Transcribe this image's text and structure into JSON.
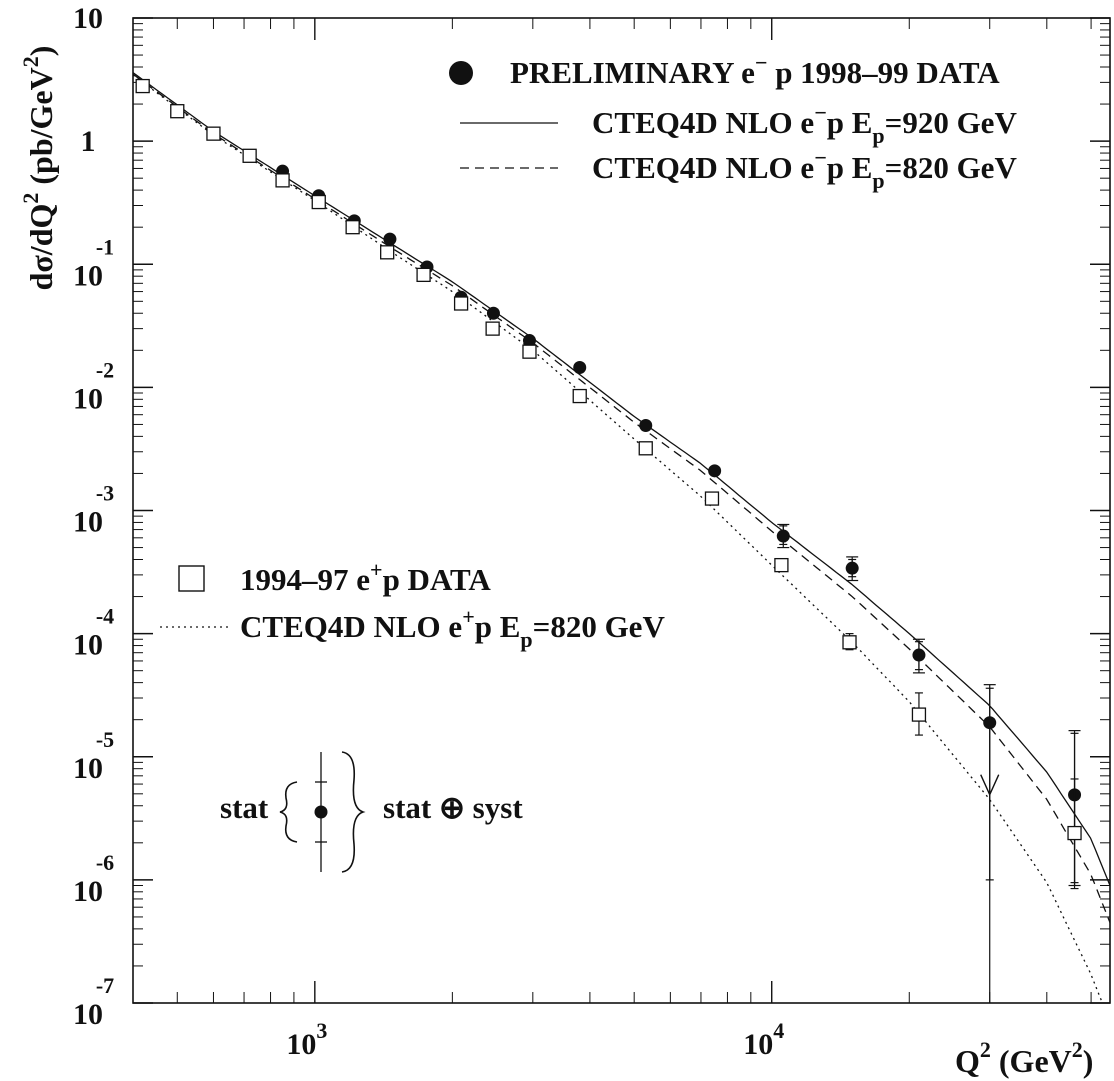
{
  "chart_data": {
    "type": "scatter",
    "title": "",
    "x_scale": "log",
    "y_scale": "log",
    "xlim": [
      400,
      55000
    ],
    "ylim": [
      1e-07,
      10
    ],
    "x_ticks": [
      {
        "value": 1000,
        "base": "10",
        "exp": "3"
      },
      {
        "value": 10000,
        "base": "10",
        "exp": "4"
      }
    ],
    "y_ticks": [
      {
        "value": 10,
        "base": "10",
        "exp": ""
      },
      {
        "value": 1,
        "base": "1",
        "exp": ""
      },
      {
        "value": 0.1,
        "base": "10",
        "exp": "-1"
      },
      {
        "value": 0.01,
        "base": "10",
        "exp": "-2"
      },
      {
        "value": 0.001,
        "base": "10",
        "exp": "-3"
      },
      {
        "value": 0.0001,
        "base": "10",
        "exp": "-4"
      },
      {
        "value": 1e-05,
        "base": "10",
        "exp": "-5"
      },
      {
        "value": 1e-06,
        "base": "10",
        "exp": "-6"
      },
      {
        "value": 1e-07,
        "base": "10",
        "exp": "-7"
      }
    ],
    "ylabel": {
      "main": "dσ/dQ",
      "sup": "2",
      "units": "(pb/GeV",
      "units_sup": "2",
      "close": ")"
    },
    "xlabel": {
      "main": "Q",
      "sup": "2",
      "units": " (GeV",
      "units_sup": "2",
      "close": ")"
    },
    "series": [
      {
        "name": "PRELIMINARY e⁻ p 1998–99 DATA",
        "kind": "points",
        "marker": "filled-circle",
        "color": "#111111",
        "points": [
          {
            "x": 850,
            "y": 0.57
          },
          {
            "x": 1020,
            "y": 0.36
          },
          {
            "x": 1220,
            "y": 0.225
          },
          {
            "x": 1460,
            "y": 0.16
          },
          {
            "x": 1760,
            "y": 0.095
          },
          {
            "x": 2090,
            "y": 0.054
          },
          {
            "x": 2460,
            "y": 0.04
          },
          {
            "x": 2950,
            "y": 0.024
          },
          {
            "x": 3800,
            "y": 0.0145
          },
          {
            "x": 5300,
            "y": 0.0049
          },
          {
            "x": 7500,
            "y": 0.0021
          },
          {
            "x": 10600,
            "y": 0.00062,
            "err": [
              0.00053,
              0.00075
            ],
            "errTot": [
              0.0005,
              0.00077
            ]
          },
          {
            "x": 15000,
            "y": 0.00034,
            "err": [
              0.00029,
              0.0004
            ],
            "errTot": [
              0.00027,
              0.00042
            ]
          },
          {
            "x": 21000,
            "y": 6.7e-05,
            "err": [
              5.1e-05,
              8.6e-05
            ],
            "errTot": [
              4.8e-05,
              9e-05
            ]
          },
          {
            "x": 30000,
            "y": 1.89e-05,
            "err": [
              1e-06,
              3.6e-05
            ],
            "errTot": [
              1e-07,
              3.85e-05
            ],
            "arrow": true
          },
          {
            "x": 46000,
            "y": 4.9e-06,
            "err": [
              9.5e-07,
              1.55e-05
            ],
            "errTot": [
              9e-07,
              1.63e-05
            ]
          }
        ]
      },
      {
        "name": "1994–97 e⁺p DATA",
        "kind": "points",
        "marker": "open-square",
        "color": "#111111",
        "points": [
          {
            "x": 420,
            "y": 2.8
          },
          {
            "x": 500,
            "y": 1.75
          },
          {
            "x": 600,
            "y": 1.15
          },
          {
            "x": 720,
            "y": 0.76
          },
          {
            "x": 850,
            "y": 0.48
          },
          {
            "x": 1020,
            "y": 0.32
          },
          {
            "x": 1210,
            "y": 0.2
          },
          {
            "x": 1440,
            "y": 0.125
          },
          {
            "x": 1730,
            "y": 0.082
          },
          {
            "x": 2090,
            "y": 0.048
          },
          {
            "x": 2450,
            "y": 0.03
          },
          {
            "x": 2950,
            "y": 0.0195
          },
          {
            "x": 3800,
            "y": 0.0085
          },
          {
            "x": 5300,
            "y": 0.0032
          },
          {
            "x": 7400,
            "y": 0.00125
          },
          {
            "x": 10500,
            "y": 0.00036,
            "err": [
              0.00032,
              0.00039
            ]
          },
          {
            "x": 14800,
            "y": 8.5e-05,
            "err": [
              7.4e-05,
              0.0001
            ]
          },
          {
            "x": 21000,
            "y": 2.2e-05,
            "err": [
              1.5e-05,
              3.3e-05
            ]
          },
          {
            "x": 46000,
            "y": 2.4e-06,
            "err": [
              8.5e-07,
              6.6e-06
            ]
          }
        ]
      },
      {
        "name": "CTEQ4D NLO e⁻p Ep=920 GeV",
        "kind": "line",
        "dash": "none",
        "color": "#111111",
        "points": [
          {
            "x": 400,
            "y": 3.6
          },
          {
            "x": 600,
            "y": 1.2
          },
          {
            "x": 1000,
            "y": 0.36
          },
          {
            "x": 1500,
            "y": 0.14
          },
          {
            "x": 2000,
            "y": 0.072
          },
          {
            "x": 3000,
            "y": 0.025
          },
          {
            "x": 5000,
            "y": 0.0058
          },
          {
            "x": 7000,
            "y": 0.0024
          },
          {
            "x": 10000,
            "y": 0.0008
          },
          {
            "x": 15000,
            "y": 0.00025
          },
          {
            "x": 20000,
            "y": 0.0001
          },
          {
            "x": 30000,
            "y": 2.6e-05
          },
          {
            "x": 40000,
            "y": 7.5e-06
          },
          {
            "x": 50000,
            "y": 2.15e-06
          },
          {
            "x": 55000,
            "y": 9e-07
          }
        ]
      },
      {
        "name": "CTEQ4D NLO e⁻p Ep=820 GeV",
        "kind": "line",
        "dash": "9 6",
        "color": "#111111",
        "points": [
          {
            "x": 400,
            "y": 3.5
          },
          {
            "x": 600,
            "y": 1.15
          },
          {
            "x": 1000,
            "y": 0.34
          },
          {
            "x": 1500,
            "y": 0.13
          },
          {
            "x": 2000,
            "y": 0.067
          },
          {
            "x": 3000,
            "y": 0.023
          },
          {
            "x": 5000,
            "y": 0.0052
          },
          {
            "x": 7000,
            "y": 0.0021
          },
          {
            "x": 10000,
            "y": 0.00068
          },
          {
            "x": 15000,
            "y": 0.0002
          },
          {
            "x": 20000,
            "y": 7.5e-05
          },
          {
            "x": 30000,
            "y": 1.75e-05
          },
          {
            "x": 40000,
            "y": 4.5e-06
          },
          {
            "x": 50000,
            "y": 1.1e-06
          },
          {
            "x": 55000,
            "y": 4.5e-07
          }
        ]
      },
      {
        "name": "CTEQ4D NLO e⁺p Ep=820 GeV",
        "kind": "line",
        "dash": "2 4",
        "color": "#111111",
        "points": [
          {
            "x": 400,
            "y": 3.45
          },
          {
            "x": 600,
            "y": 1.12
          },
          {
            "x": 1000,
            "y": 0.33
          },
          {
            "x": 1500,
            "y": 0.12
          },
          {
            "x": 2000,
            "y": 0.06
          },
          {
            "x": 3000,
            "y": 0.02
          },
          {
            "x": 5000,
            "y": 0.0038
          },
          {
            "x": 7000,
            "y": 0.0013
          },
          {
            "x": 10000,
            "y": 0.00036
          },
          {
            "x": 15000,
            "y": 8.5e-05
          },
          {
            "x": 20000,
            "y": 2.8e-05
          },
          {
            "x": 30000,
            "y": 4.5e-06
          },
          {
            "x": 40000,
            "y": 9.5e-07
          },
          {
            "x": 50000,
            "y": 1.7e-07
          },
          {
            "x": 55000,
            "y": 7e-08
          }
        ]
      }
    ],
    "legend": {
      "top": [
        {
          "marker": "filled-circle",
          "text": "PRELIMINARY e",
          "sup": "−",
          "rest": " p 1998–99 DATA"
        },
        {
          "marker": "solid-line",
          "text": "CTEQ4D NLO e",
          "sup": "−",
          "rest": "p E",
          "sub": "p",
          "tail": "=920 GeV"
        },
        {
          "marker": "dashed-line",
          "text": "CTEQ4D NLO e",
          "sup": "−",
          "rest": "p E",
          "sub": "p",
          "tail": "=820 GeV"
        }
      ],
      "bottom": [
        {
          "marker": "open-square",
          "text": "1994–97 e",
          "sup": "+",
          "rest": "p DATA"
        },
        {
          "marker": "dotted-line",
          "text": "CTEQ4D NLO e",
          "sup": "+",
          "rest": "p E",
          "sub": "p",
          "tail": "=820 GeV"
        }
      ],
      "errors": {
        "stat": "stat",
        "total": "stat ⊕ syst"
      }
    }
  }
}
